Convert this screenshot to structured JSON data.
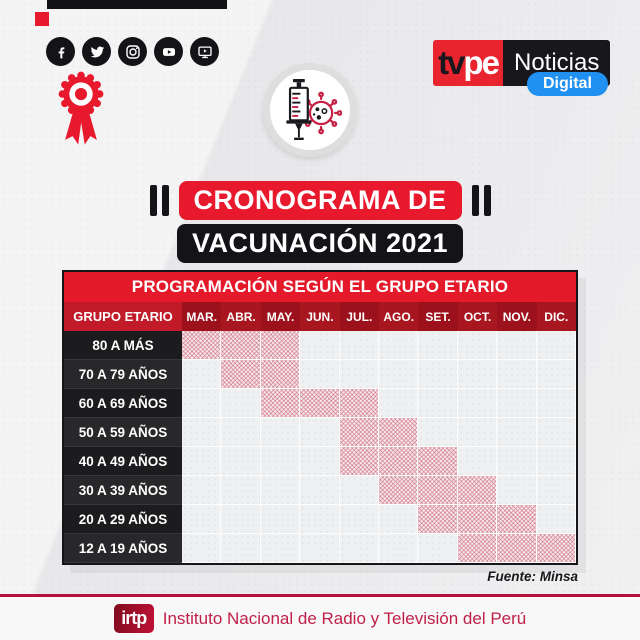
{
  "brand": {
    "tv": "tv",
    "pe": "pe",
    "noticias": "Noticias",
    "digital": "Digital"
  },
  "social": {
    "icons": [
      "facebook-icon",
      "twitter-icon",
      "instagram-icon",
      "youtube-icon",
      "web-tv-icon"
    ]
  },
  "decor_icons": [
    "peru-rosette-icon",
    "syringe-virus-icon"
  ],
  "title": {
    "line1": "CRONOGRAMA DE",
    "line2": "VACUNACIÓN 2021"
  },
  "table": {
    "header": "PROGRAMACIÓN SEGÚN EL GRUPO ETARIO",
    "corner": "GRUPO ETARIO",
    "months": [
      "MAR.",
      "ABR.",
      "MAY.",
      "JUN.",
      "JUL.",
      "AGO.",
      "SET.",
      "OCT.",
      "NOV.",
      "DIC."
    ],
    "rows": [
      {
        "label": "80 A MÁS",
        "active_months": [
          "MAR.",
          "ABR.",
          "MAY."
        ]
      },
      {
        "label": "70 A 79 AÑOS",
        "active_months": [
          "ABR.",
          "MAY."
        ]
      },
      {
        "label": "60 A 69 AÑOS",
        "active_months": [
          "MAY.",
          "JUN.",
          "JUL."
        ]
      },
      {
        "label": "50 A 59 AÑOS",
        "active_months": [
          "JUL.",
          "AGO."
        ]
      },
      {
        "label": "40 A 49 AÑOS",
        "active_months": [
          "JUL.",
          "AGO.",
          "SET."
        ]
      },
      {
        "label": "30 A 39 AÑOS",
        "active_months": [
          "AGO.",
          "SET.",
          "OCT."
        ]
      },
      {
        "label": "20 A 29 AÑOS",
        "active_months": [
          "SET.",
          "OCT.",
          "NOV."
        ]
      },
      {
        "label": "12 A 19 AÑOS",
        "active_months": [
          "OCT.",
          "NOV.",
          "DIC."
        ]
      }
    ]
  },
  "chart_data": {
    "type": "heatmap",
    "title": "PROGRAMACIÓN SEGÚN EL GRUPO ETARIO",
    "x_labels": [
      "MAR.",
      "ABR.",
      "MAY.",
      "JUN.",
      "JUL.",
      "AGO.",
      "SET.",
      "OCT.",
      "NOV.",
      "DIC."
    ],
    "y_labels": [
      "80 A MÁS",
      "70 A 79 AÑOS",
      "60 A 69 AÑOS",
      "50 A 59 AÑOS",
      "40 A 49 AÑOS",
      "30 A 39 AÑOS",
      "20 A 29 AÑOS",
      "12 A 19 AÑOS"
    ],
    "series": [
      {
        "name": "80 A MÁS",
        "values": [
          1,
          1,
          1,
          0,
          0,
          0,
          0,
          0,
          0,
          0
        ]
      },
      {
        "name": "70 A 79 AÑOS",
        "values": [
          0,
          1,
          1,
          0,
          0,
          0,
          0,
          0,
          0,
          0
        ]
      },
      {
        "name": "60 A 69 AÑOS",
        "values": [
          0,
          0,
          1,
          1,
          1,
          0,
          0,
          0,
          0,
          0
        ]
      },
      {
        "name": "50 A 59 AÑOS",
        "values": [
          0,
          0,
          0,
          0,
          1,
          1,
          0,
          0,
          0,
          0
        ]
      },
      {
        "name": "40 A 49 AÑOS",
        "values": [
          0,
          0,
          0,
          0,
          1,
          1,
          1,
          0,
          0,
          0
        ]
      },
      {
        "name": "30 A 39 AÑOS",
        "values": [
          0,
          0,
          0,
          0,
          0,
          1,
          1,
          1,
          0,
          0
        ]
      },
      {
        "name": "20 A 29 AÑOS",
        "values": [
          0,
          0,
          0,
          0,
          0,
          0,
          1,
          1,
          1,
          0
        ]
      },
      {
        "name": "12 A 19 AÑOS",
        "values": [
          0,
          0,
          0,
          0,
          0,
          0,
          0,
          1,
          1,
          1
        ]
      }
    ],
    "value_meaning": "1 = month scheduled for vaccination of that age group (hatched pink cell), 0 = not scheduled",
    "grid": true,
    "legend_position": "none"
  },
  "source": "Fuente: Minsa",
  "footer": {
    "logo_text": "irtp",
    "org_name": "Instituto Nacional de Radio y Televisión del Perú"
  },
  "colors": {
    "accent_red": "#e8192c",
    "table_header_red": "#e41a2b",
    "month_row_dark_red": "#9d111c",
    "corner_red": "#c11a28",
    "black": "#141418",
    "hatch_pink": "#ca6073",
    "digital_blue": "#2090f1",
    "footer_crimson": "#b50f3a",
    "footer_text_crimson": "#c02048",
    "virus_crimson": "#c62045"
  }
}
